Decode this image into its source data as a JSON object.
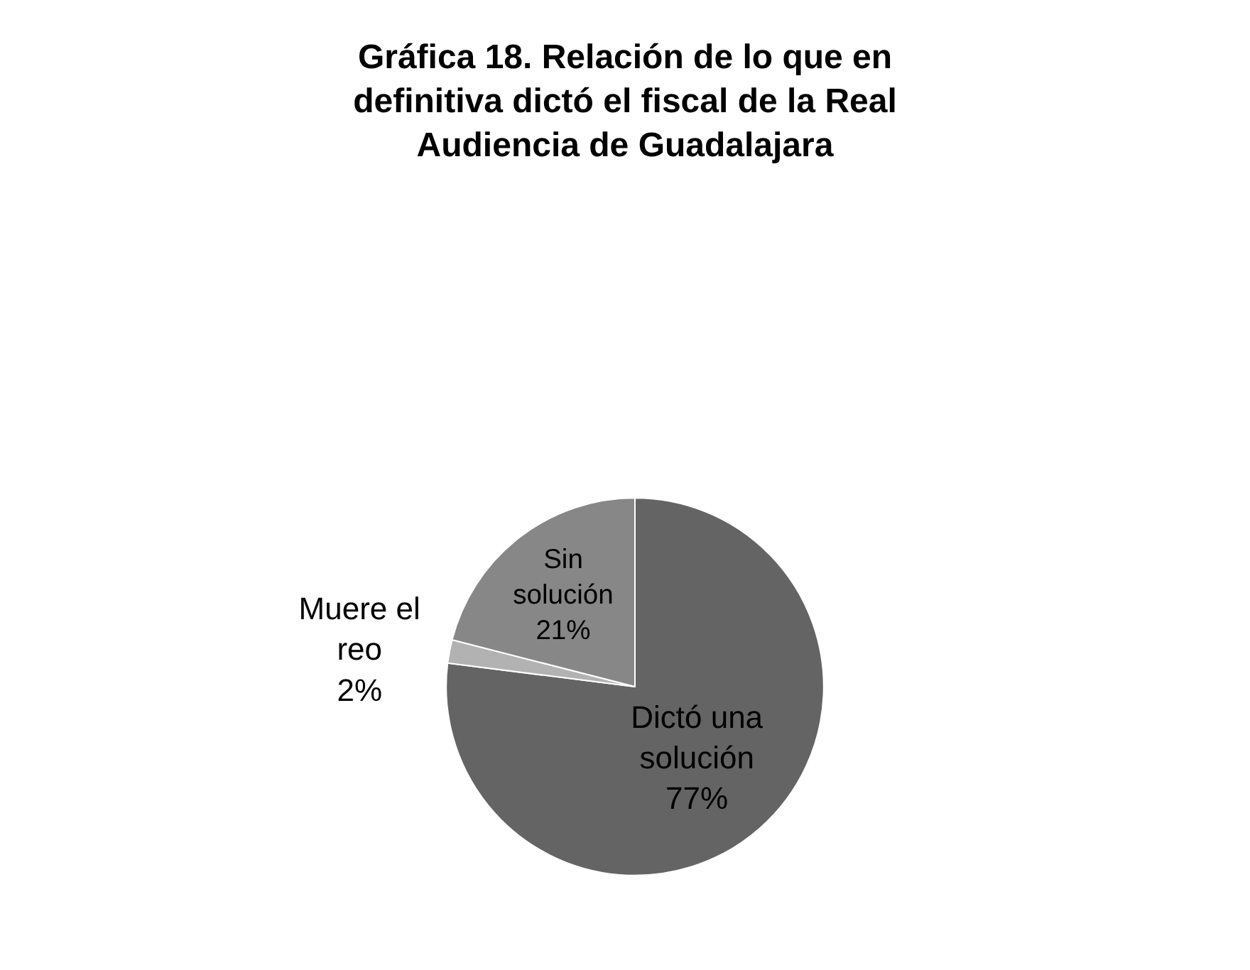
{
  "chart_data": {
    "type": "pie",
    "title": "Gráfica 18. Relación de lo que en definitiva dictó el fiscal de la Real Audiencia de Guadalajara",
    "categories": [
      "Dictó una solución",
      "Muere el reo",
      "Sin solución"
    ],
    "values": [
      77,
      2,
      21
    ],
    "value_labels": [
      "77%",
      "2%",
      "21%"
    ],
    "colors": [
      "#646464",
      "#b2b2b2",
      "#878787"
    ],
    "legend": false
  }
}
